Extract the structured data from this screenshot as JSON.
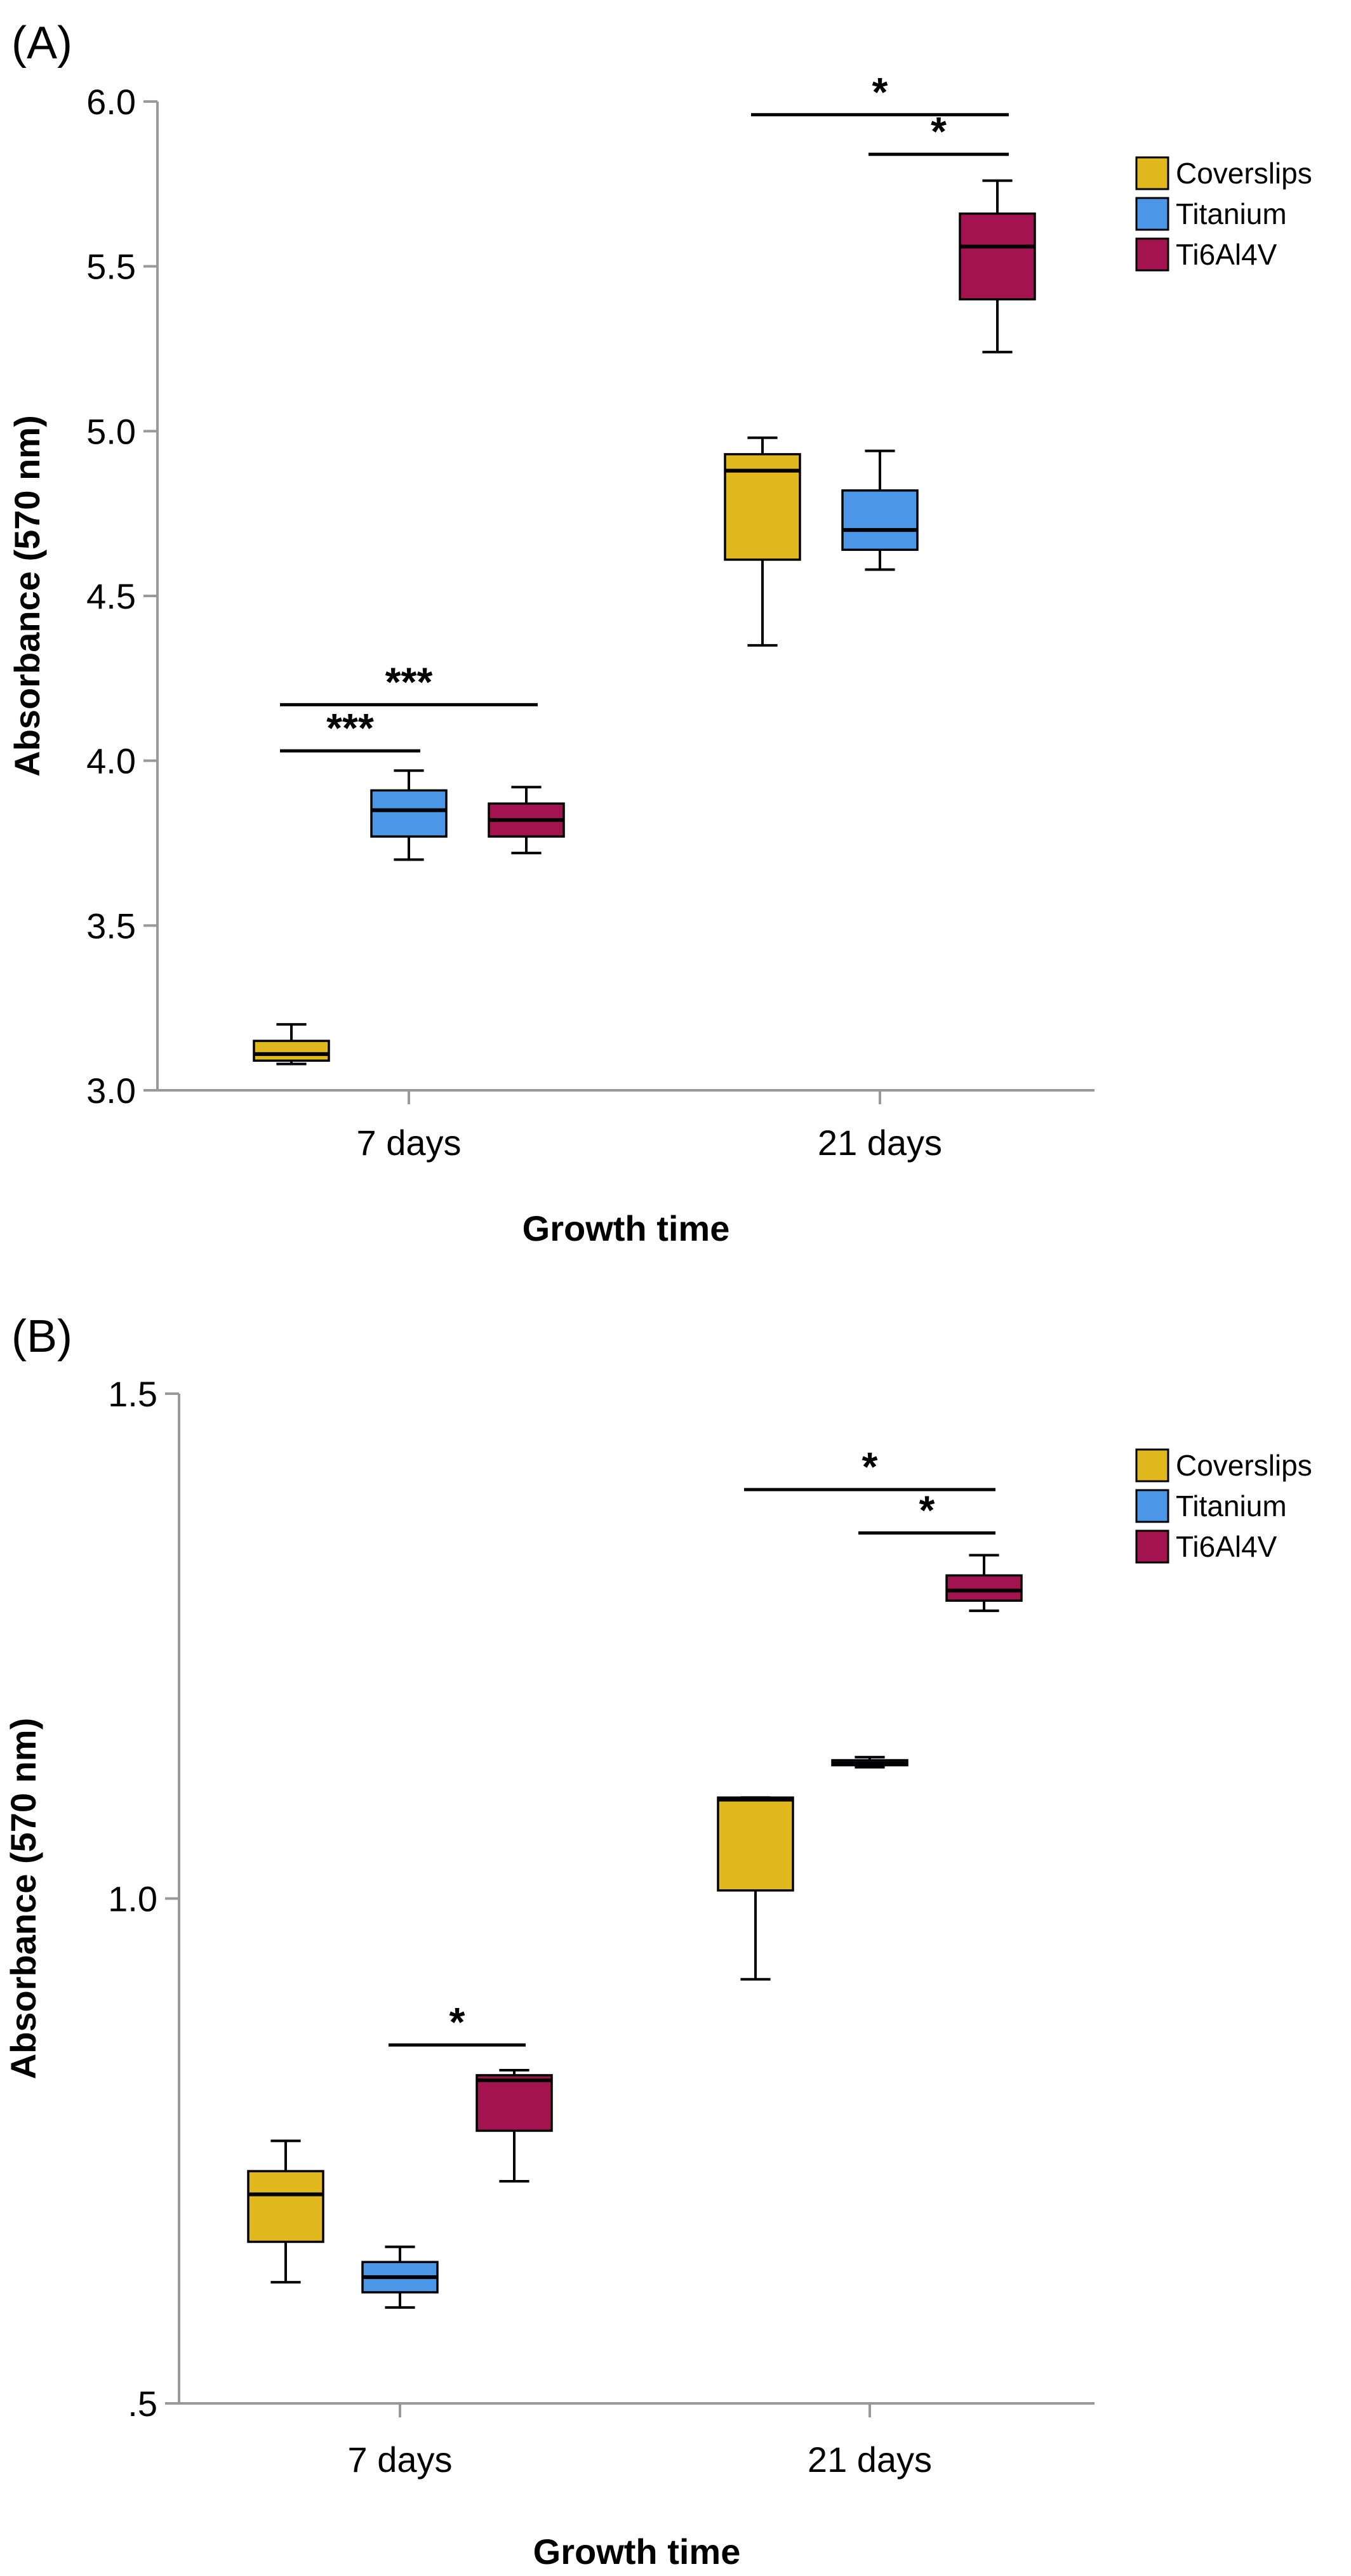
{
  "colors": {
    "Coverslips": "#e2b81f",
    "Titanium": "#4c96e8",
    "Ti6Al4V": "#a3134f",
    "axis": "#999999",
    "line": "#000000"
  },
  "chart_data": [
    {
      "type": "box",
      "panel_label": "(A)",
      "xlabel": "Growth time",
      "ylabel": "Absorbance (570 nm)",
      "ylim": [
        3.0,
        6.0
      ],
      "yticks": [
        {
          "value": 3.0,
          "label": "3.0"
        },
        {
          "value": 3.5,
          "label": "3.5"
        },
        {
          "value": 4.0,
          "label": "4.0"
        },
        {
          "value": 4.5,
          "label": "4.5"
        },
        {
          "value": 5.0,
          "label": "5.0"
        },
        {
          "value": 5.5,
          "label": "5.5"
        },
        {
          "value": 6.0,
          "label": "6.0"
        }
      ],
      "categories": [
        "7 days",
        "21 days"
      ],
      "legend": {
        "position": "top-right",
        "entries": [
          "Coverslips",
          "Titanium",
          "Ti6Al4V"
        ]
      },
      "grid": false,
      "series": [
        {
          "name": "Coverslips",
          "boxes": [
            {
              "min": 3.08,
              "q1": 3.09,
              "median": 3.11,
              "q3": 3.15,
              "max": 3.2
            },
            {
              "min": 4.35,
              "q1": 4.61,
              "median": 4.88,
              "q3": 4.93,
              "max": 4.98
            }
          ]
        },
        {
          "name": "Titanium",
          "boxes": [
            {
              "min": 3.7,
              "q1": 3.77,
              "median": 3.85,
              "q3": 3.91,
              "max": 3.97
            },
            {
              "min": 4.58,
              "q1": 4.64,
              "median": 4.7,
              "q3": 4.82,
              "max": 4.94
            }
          ]
        },
        {
          "name": "Ti6Al4V",
          "boxes": [
            {
              "min": 3.72,
              "q1": 3.77,
              "median": 3.82,
              "q3": 3.87,
              "max": 3.92
            },
            {
              "min": 5.24,
              "q1": 5.4,
              "median": 5.56,
              "q3": 5.66,
              "max": 5.76
            }
          ]
        }
      ],
      "annotations": [
        {
          "label": "***",
          "category": 0,
          "from_series": 0,
          "to_series": 1,
          "y": 4.03
        },
        {
          "label": "***",
          "category": 0,
          "from_series": 0,
          "to_series": 2,
          "y": 4.17
        },
        {
          "label": "*",
          "category": 1,
          "from_series": 1,
          "to_series": 2,
          "y": 5.84
        },
        {
          "label": "*",
          "category": 1,
          "from_series": 0,
          "to_series": 2,
          "y": 5.96
        }
      ]
    },
    {
      "type": "box",
      "panel_label": "(B)",
      "xlabel": "Growth time",
      "ylabel": "Absorbance (570 nm)",
      "ylim": [
        0.5,
        1.5
      ],
      "yticks": [
        {
          "value": 0.5,
          "label": ".5"
        },
        {
          "value": 1.0,
          "label": "1.0"
        },
        {
          "value": 1.5,
          "label": "1.5"
        }
      ],
      "categories": [
        "7 days",
        "21 days"
      ],
      "legend": {
        "position": "top-right",
        "entries": [
          "Coverslips",
          "Titanium",
          "Ti6Al4V"
        ]
      },
      "grid": false,
      "series": [
        {
          "name": "Coverslips",
          "boxes": [
            {
              "min": 0.62,
              "q1": 0.66,
              "median": 0.707,
              "q3": 0.73,
              "max": 0.76
            },
            {
              "min": 0.92,
              "q1": 1.008,
              "median": 1.098,
              "q3": 1.1,
              "max": 1.1
            }
          ]
        },
        {
          "name": "Titanium",
          "boxes": [
            {
              "min": 0.595,
              "q1": 0.61,
              "median": 0.625,
              "q3": 0.64,
              "max": 0.655
            },
            {
              "min": 1.13,
              "q1": 1.132,
              "median": 1.134,
              "q3": 1.137,
              "max": 1.14
            }
          ]
        },
        {
          "name": "Ti6Al4V",
          "boxes": [
            {
              "min": 0.72,
              "q1": 0.77,
              "median": 0.82,
              "q3": 0.825,
              "max": 0.83
            },
            {
              "min": 1.285,
              "q1": 1.295,
              "median": 1.305,
              "q3": 1.32,
              "max": 1.34
            }
          ]
        }
      ],
      "annotations": [
        {
          "label": "*",
          "category": 0,
          "from_series": 1,
          "to_series": 2,
          "y": 0.855
        },
        {
          "label": "*",
          "category": 1,
          "from_series": 1,
          "to_series": 2,
          "y": 1.362
        },
        {
          "label": "*",
          "category": 1,
          "from_series": 0,
          "to_series": 2,
          "y": 1.405
        }
      ]
    }
  ]
}
